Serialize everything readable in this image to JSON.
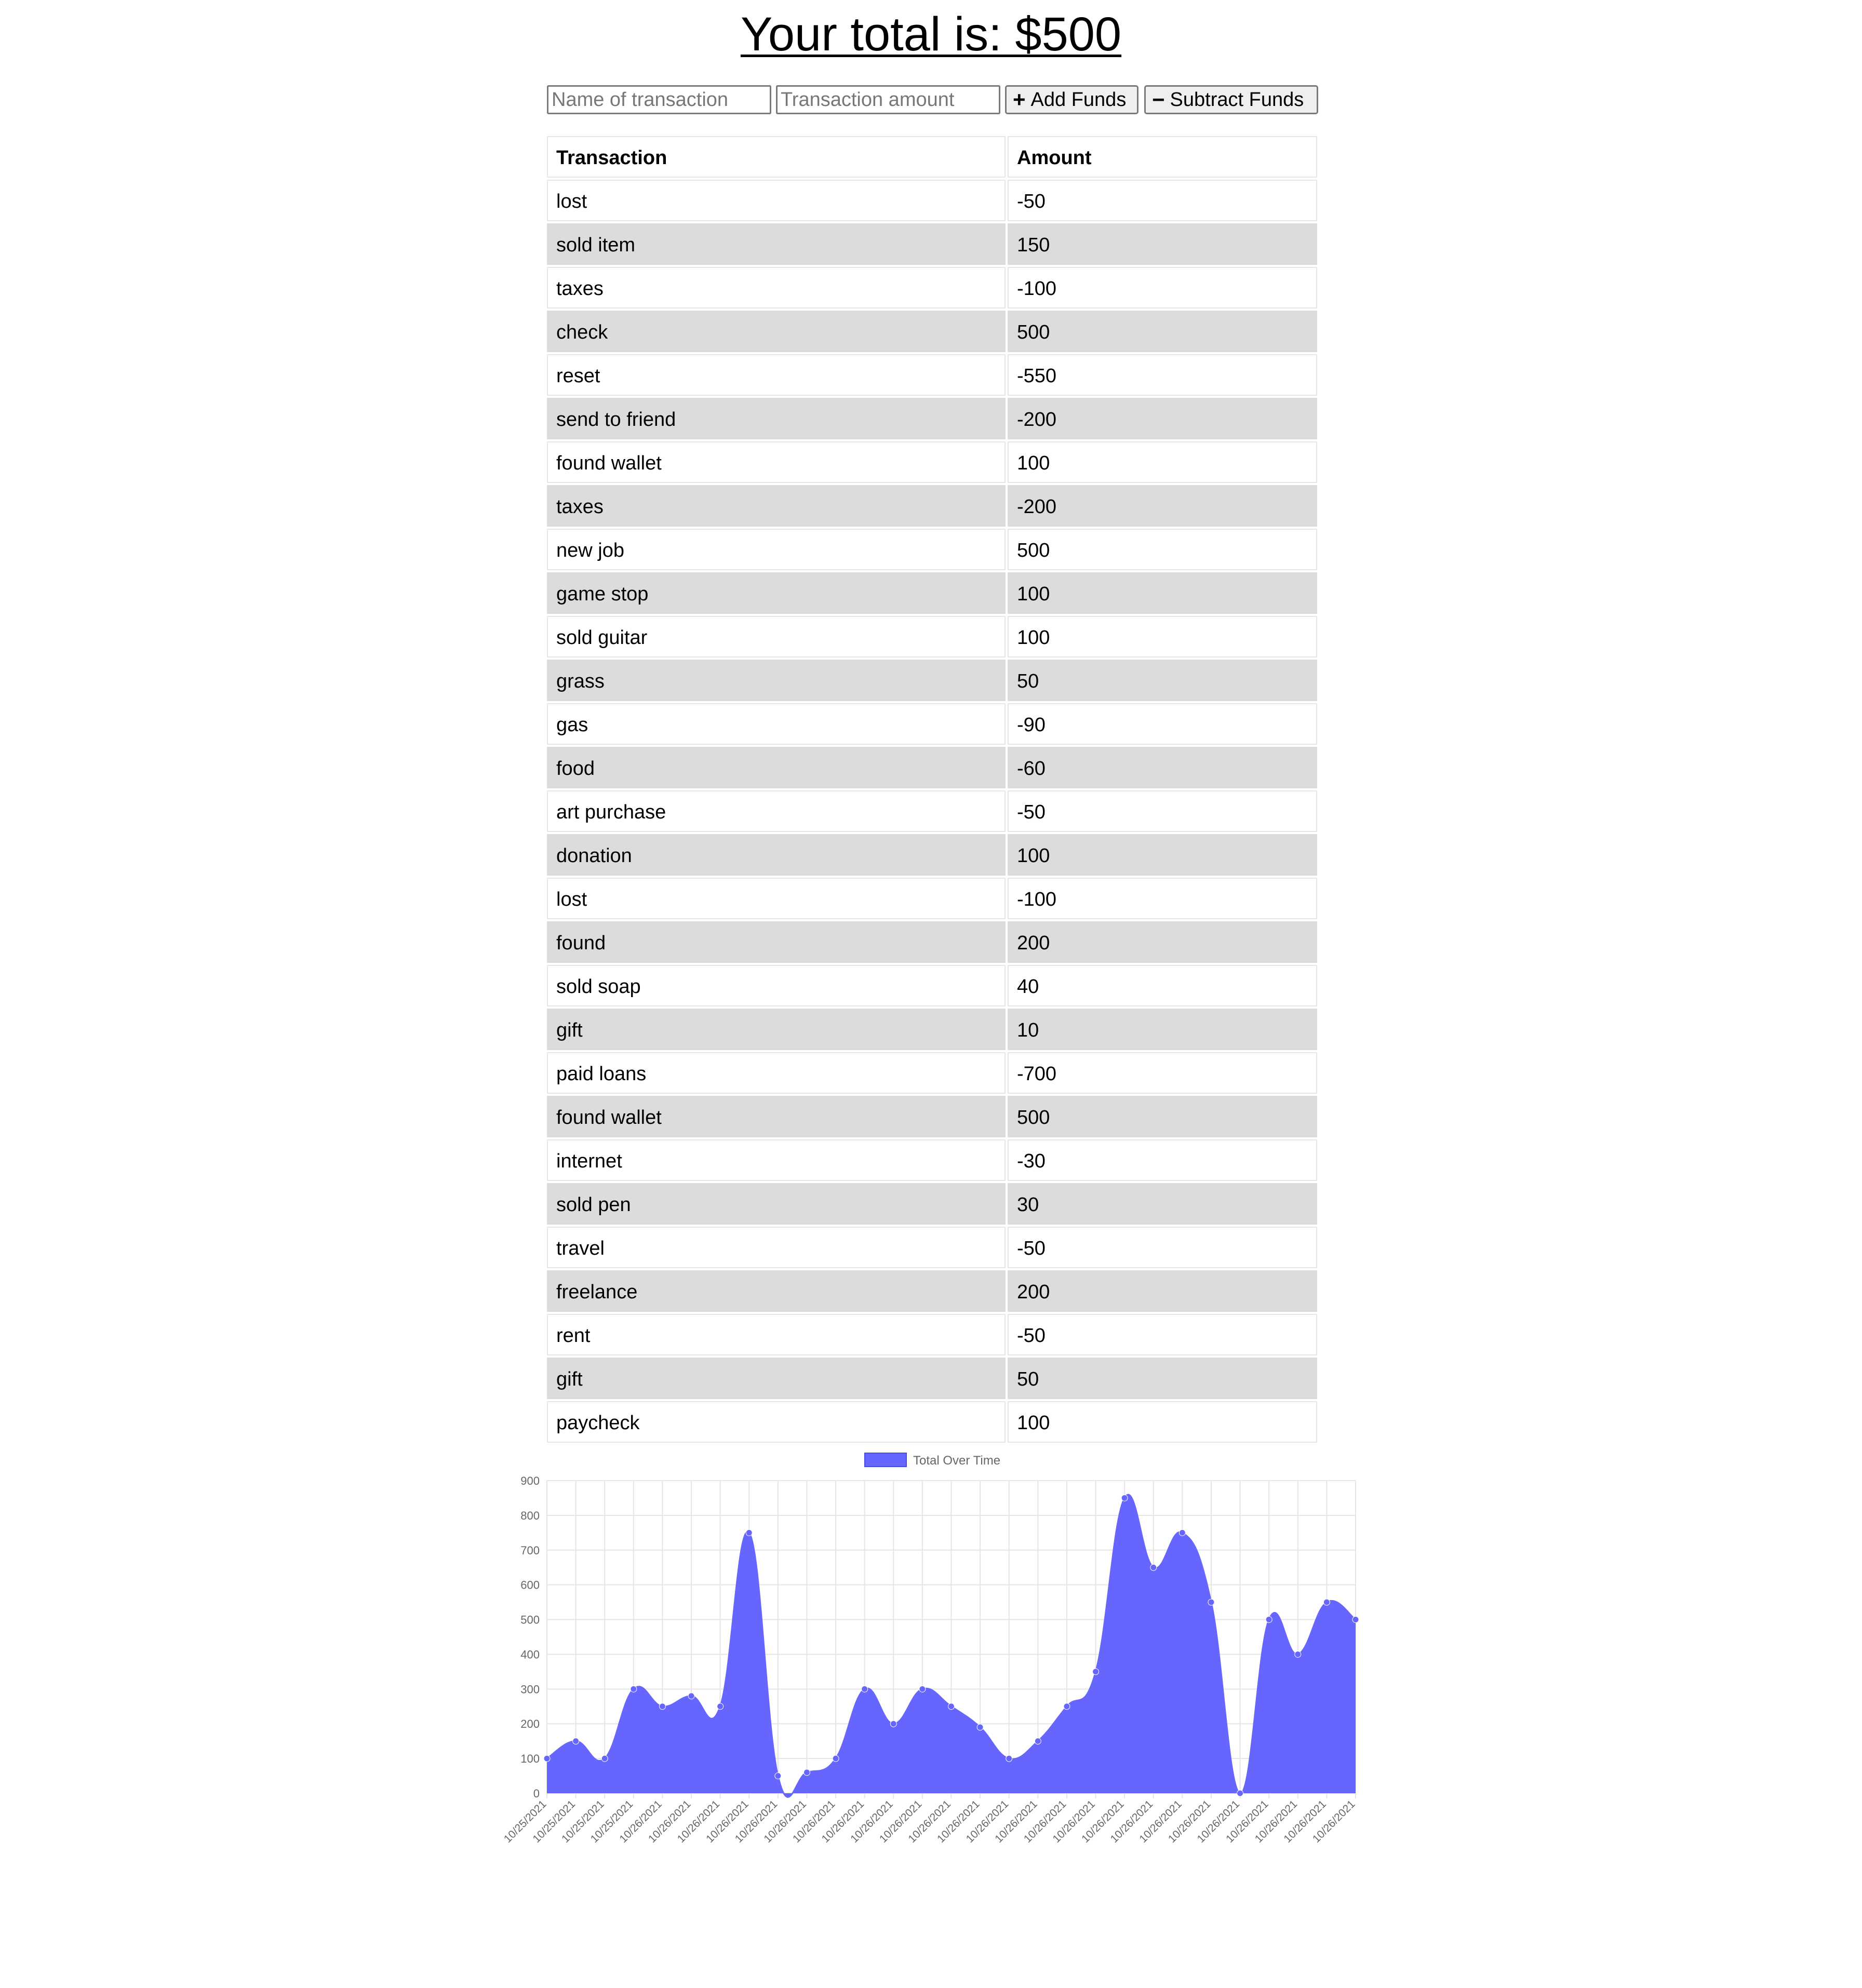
{
  "header": {
    "title": "Your total is: $500"
  },
  "form": {
    "name_placeholder": "Name of transaction",
    "amount_placeholder": "Transaction amount",
    "add_label": "Add Funds",
    "subtract_label": "Subtract Funds",
    "add_icon": "plus-icon",
    "subtract_icon": "minus-icon"
  },
  "table": {
    "headers": [
      "Transaction",
      "Amount"
    ],
    "rows": [
      {
        "name": "lost",
        "amount": "-50"
      },
      {
        "name": "sold item",
        "amount": "150"
      },
      {
        "name": "taxes",
        "amount": "-100"
      },
      {
        "name": "check",
        "amount": "500"
      },
      {
        "name": "reset",
        "amount": "-550"
      },
      {
        "name": "send to friend",
        "amount": "-200"
      },
      {
        "name": "found wallet",
        "amount": "100"
      },
      {
        "name": "taxes",
        "amount": "-200"
      },
      {
        "name": "new job",
        "amount": "500"
      },
      {
        "name": "game stop",
        "amount": "100"
      },
      {
        "name": "sold guitar",
        "amount": "100"
      },
      {
        "name": "grass",
        "amount": "50"
      },
      {
        "name": "gas",
        "amount": "-90"
      },
      {
        "name": "food",
        "amount": "-60"
      },
      {
        "name": "art purchase",
        "amount": "-50"
      },
      {
        "name": "donation",
        "amount": "100"
      },
      {
        "name": "lost",
        "amount": "-100"
      },
      {
        "name": "found",
        "amount": "200"
      },
      {
        "name": "sold soap",
        "amount": "40"
      },
      {
        "name": "gift",
        "amount": "10"
      },
      {
        "name": "paid loans",
        "amount": "-700"
      },
      {
        "name": "found wallet",
        "amount": "500"
      },
      {
        "name": "internet",
        "amount": "-30"
      },
      {
        "name": "sold pen",
        "amount": "30"
      },
      {
        "name": "travel",
        "amount": "-50"
      },
      {
        "name": "freelance",
        "amount": "200"
      },
      {
        "name": "rent",
        "amount": "-50"
      },
      {
        "name": "gift",
        "amount": "50"
      },
      {
        "name": "paycheck",
        "amount": "100"
      }
    ]
  },
  "chart_data": {
    "type": "area",
    "legend": {
      "label": "Total Over Time",
      "position": "top"
    },
    "colors": {
      "fill": "#6666ff",
      "grid": "#e5e5e5",
      "ticks": "#666666"
    },
    "grid": true,
    "ylim": [
      0,
      900
    ],
    "yticks": [
      0,
      100,
      200,
      300,
      400,
      500,
      600,
      700,
      800,
      900
    ],
    "series": [
      {
        "name": "Total Over Time",
        "x": [
          "10/25/2021",
          "10/25/2021",
          "10/25/2021",
          "10/25/2021",
          "10/26/2021",
          "10/26/2021",
          "10/26/2021",
          "10/26/2021",
          "10/26/2021",
          "10/26/2021",
          "10/26/2021",
          "10/26/2021",
          "10/26/2021",
          "10/26/2021",
          "10/26/2021",
          "10/26/2021",
          "10/26/2021",
          "10/26/2021",
          "10/26/2021",
          "10/26/2021",
          "10/26/2021",
          "10/26/2021",
          "10/26/2021",
          "10/26/2021",
          "10/26/2021",
          "10/26/2021",
          "10/26/2021",
          "10/26/2021",
          "10/26/2021"
        ],
        "values": [
          100,
          150,
          100,
          300,
          250,
          280,
          250,
          750,
          50,
          60,
          100,
          300,
          200,
          300,
          250,
          190,
          100,
          150,
          250,
          350,
          850,
          650,
          750,
          550,
          0,
          500,
          400,
          550,
          500
        ]
      }
    ]
  }
}
